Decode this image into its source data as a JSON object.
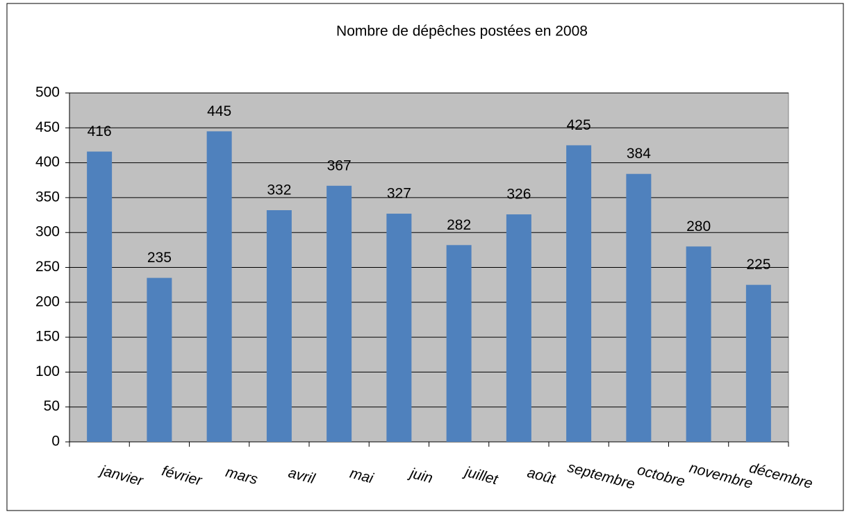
{
  "chart_data": {
    "type": "bar",
    "title": "Nombre de dépêches postées en 2008",
    "categories": [
      "janvier",
      "février",
      "mars",
      "avril",
      "mai",
      "juin",
      "juillet",
      "août",
      "septembre",
      "octobre",
      "novembre",
      "décembre"
    ],
    "values": [
      416,
      235,
      445,
      332,
      367,
      327,
      282,
      326,
      425,
      384,
      280,
      225
    ],
    "color": "#4f81bd",
    "ylim": [
      0,
      500
    ],
    "yticks": [
      0,
      50,
      100,
      150,
      200,
      250,
      300,
      350,
      400,
      450,
      500
    ],
    "grid": true
  }
}
